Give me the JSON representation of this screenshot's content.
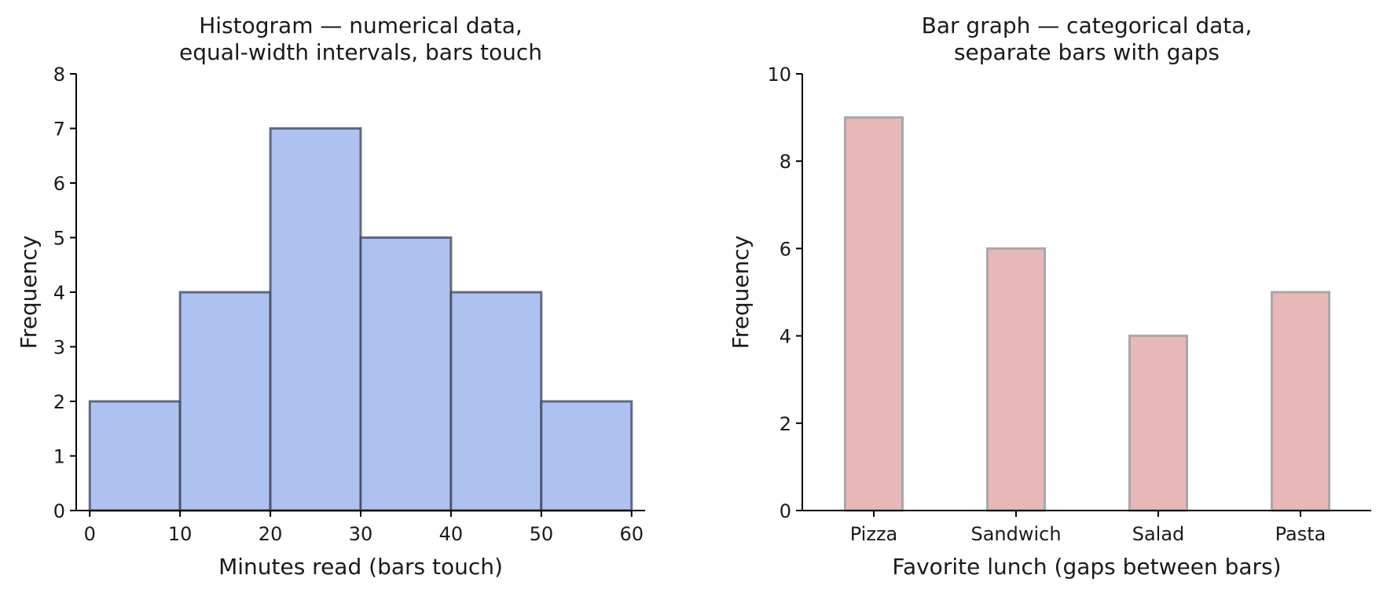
{
  "chart_data": [
    {
      "type": "bar",
      "title": [
        "Histogram — numerical data,",
        "equal-width intervals, bars touch"
      ],
      "xlabel": "Minutes read (bars touch)",
      "ylabel": "Frequency",
      "bins": [
        [
          0,
          10
        ],
        [
          10,
          20
        ],
        [
          20,
          30
        ],
        [
          30,
          40
        ],
        [
          40,
          50
        ],
        [
          50,
          60
        ]
      ],
      "values": [
        2,
        4,
        7,
        5,
        4,
        2
      ],
      "xlim": [
        -1.5,
        61.5
      ],
      "ylim": [
        0,
        8
      ],
      "xticks": [
        0,
        10,
        20,
        30,
        40,
        50,
        60
      ],
      "yticks": [
        0,
        1,
        2,
        3,
        4,
        5,
        6,
        7,
        8
      ],
      "bar_color": "#aec2f2",
      "edge_color": "#3d4253",
      "grid": false,
      "legend": false
    },
    {
      "type": "bar",
      "title": [
        "Bar graph — categorical data,",
        "separate bars with gaps"
      ],
      "xlabel": "Favorite lunch (gaps between bars)",
      "ylabel": "Frequency",
      "categories": [
        "Pizza",
        "Sandwich",
        "Salad",
        "Pasta"
      ],
      "values": [
        9,
        6,
        4,
        5
      ],
      "ylim": [
        0,
        10
      ],
      "yticks": [
        0,
        2,
        4,
        6,
        8,
        10
      ],
      "bar_color": "#e8b8b8",
      "edge_color": "#a8a8a8",
      "grid": false,
      "legend": false
    }
  ]
}
